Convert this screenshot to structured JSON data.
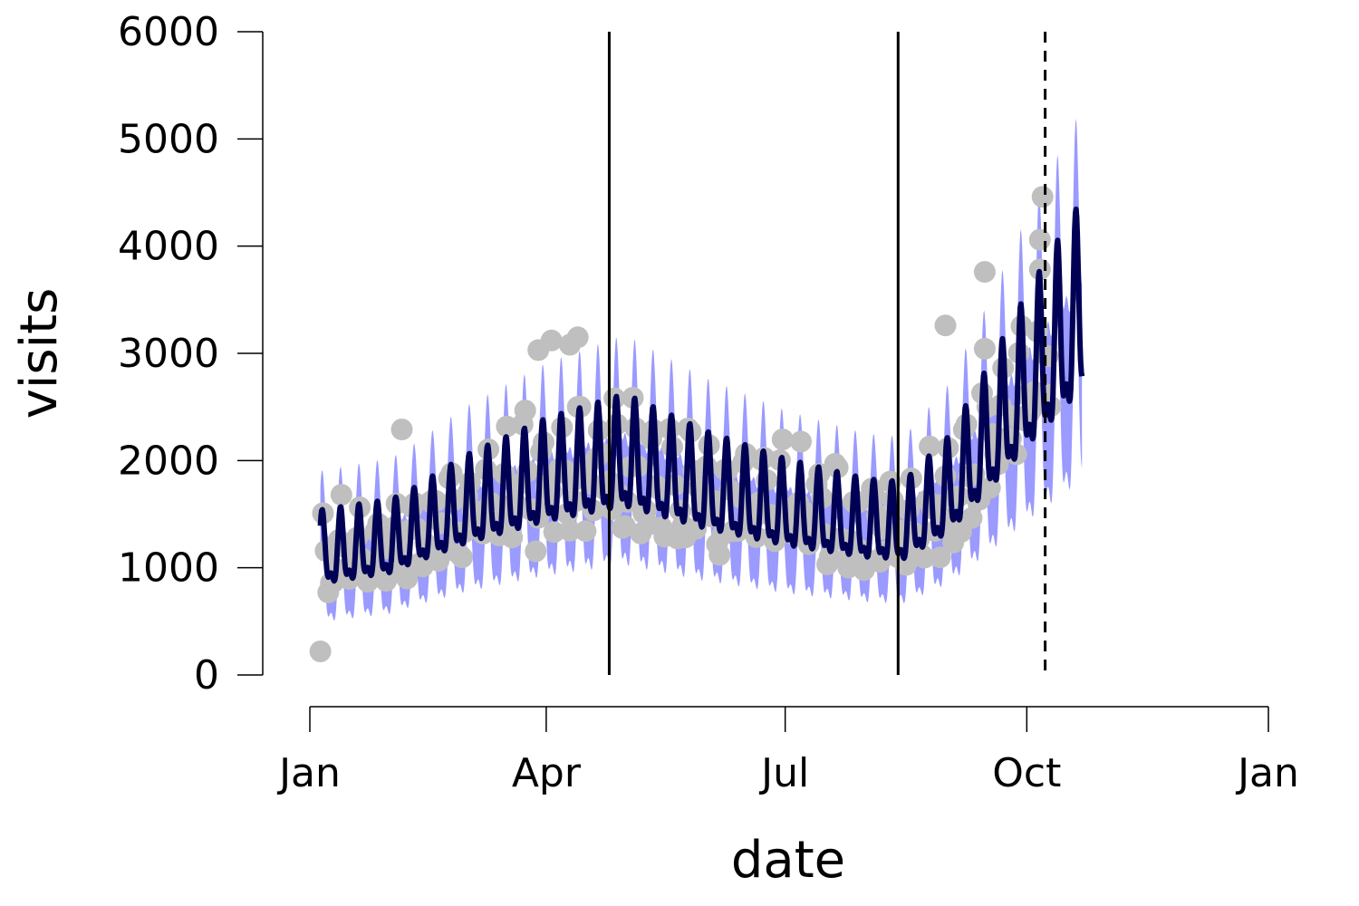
{
  "chart_data": {
    "type": "line",
    "xlabel": "date",
    "ylabel": "visits",
    "ylim": [
      0,
      6000
    ],
    "xlim": [
      "2017-01-01",
      "2018-01-01"
    ],
    "y_ticks": [
      0,
      1000,
      2000,
      3000,
      4000,
      5000,
      6000
    ],
    "y_tick_labels": [
      "0",
      "1000",
      "2000",
      "3000",
      "4000",
      "5000",
      "6000"
    ],
    "x_ticks": [
      "2017-01-01",
      "2017-04-01",
      "2017-07-01",
      "2017-10-01",
      "2018-01-01"
    ],
    "x_tick_labels": [
      "Jan",
      "Apr",
      "Jul",
      "Oct",
      "Jan"
    ],
    "grid": false,
    "legend": "none",
    "colors": {
      "observed": "#bfbfbf",
      "forecast": "#000055",
      "band": "#8888ff",
      "vline": "#000000"
    },
    "vertical_lines": [
      {
        "date": "2017-04-25",
        "style": "solid"
      },
      {
        "date": "2017-08-13",
        "style": "solid"
      },
      {
        "date": "2017-10-08",
        "style": "dashed"
      }
    ],
    "trend_anchors": [
      {
        "date": "2017-01-05",
        "trend": 1100
      },
      {
        "date": "2017-02-01",
        "trend": 1200
      },
      {
        "date": "2017-03-01",
        "trend": 1520
      },
      {
        "date": "2017-04-01",
        "trend": 1780
      },
      {
        "date": "2017-05-01",
        "trend": 1950
      },
      {
        "date": "2017-06-01",
        "trend": 1690
      },
      {
        "date": "2017-07-01",
        "trend": 1500
      },
      {
        "date": "2017-08-01",
        "trend": 1360
      },
      {
        "date": "2017-08-15",
        "trend": 1340
      },
      {
        "date": "2017-09-01",
        "trend": 1650
      },
      {
        "date": "2017-09-15",
        "trend": 2100
      },
      {
        "date": "2017-10-01",
        "trend": 2650
      },
      {
        "date": "2017-10-22",
        "trend": 3300
      }
    ],
    "weekly_amplitude": 650,
    "band_halfwidth": 420,
    "forecast_start": "2017-01-05",
    "forecast_end": "2017-10-22",
    "observed_outliers": [
      {
        "date": "2017-01-05",
        "value": 220
      },
      {
        "date": "2017-02-05",
        "value": 2290
      },
      {
        "date": "2017-03-29",
        "value": 3030
      },
      {
        "date": "2017-04-03",
        "value": 3120
      },
      {
        "date": "2017-04-10",
        "value": 3080
      },
      {
        "date": "2017-04-13",
        "value": 3150
      },
      {
        "date": "2017-08-31",
        "value": 3260
      },
      {
        "date": "2017-09-15",
        "value": 3760
      },
      {
        "date": "2017-10-07",
        "value": 4460
      },
      {
        "date": "2017-10-06",
        "value": 4060
      }
    ]
  }
}
